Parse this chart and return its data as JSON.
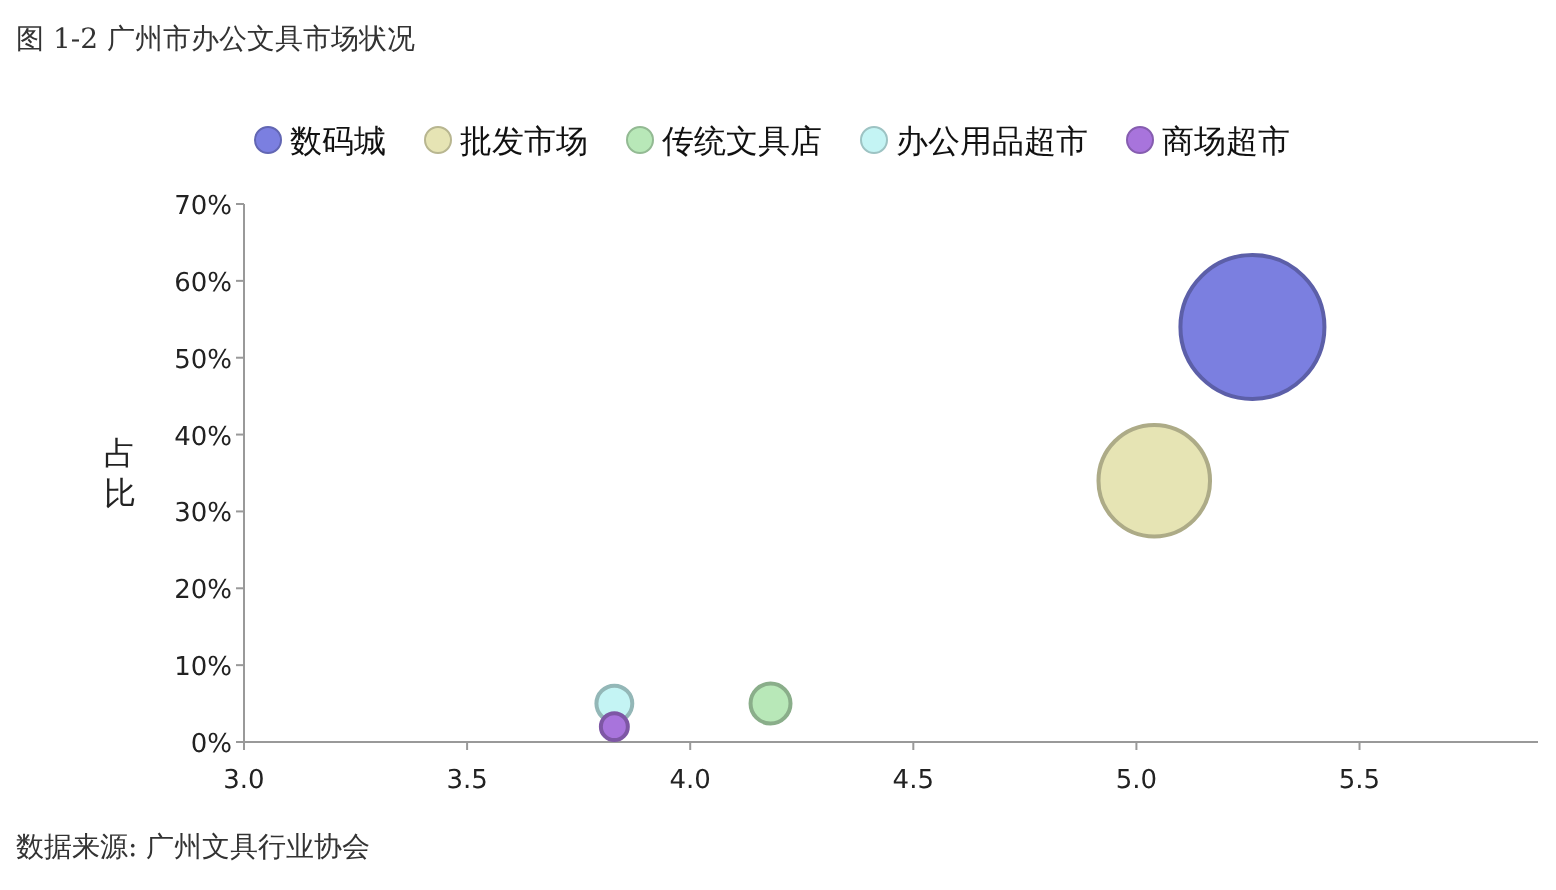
{
  "chart_data": {
    "type": "bubble",
    "title": "图 1-2 广州市办公文具市场状况",
    "ylabel": "占比",
    "annotations": [
      "数据来源: 广州文具行业协会"
    ],
    "series": [
      {
        "name": "数码城",
        "color": "#7b7fe0",
        "x": [
          5.26
        ],
        "values": [
          54
        ],
        "sizes": [
          1
        ]
      },
      {
        "name": "批发市场",
        "color": "#e6e4b4",
        "x": [
          5.04
        ],
        "values": [
          34
        ],
        "sizes": [
          0.6
        ]
      },
      {
        "name": "传统文具店",
        "color": "#b8e8b8",
        "x": [
          4.18
        ],
        "values": [
          5
        ],
        "sizes": [
          0.077
        ]
      },
      {
        "name": "办公用品超市",
        "color": "#c4f4f4",
        "x": [
          3.83
        ],
        "values": [
          5
        ],
        "sizes": [
          0.062
        ]
      },
      {
        "name": "商场超市",
        "color": "#a874dc",
        "x": [
          3.83
        ],
        "values": [
          2
        ],
        "sizes": [
          0.035
        ]
      }
    ],
    "xlim": [
      3.0,
      5.9
    ],
    "ylim": [
      0,
      70
    ],
    "xticks": [
      {
        "value": 3,
        "label": "3.0"
      },
      {
        "value": 3.5,
        "label": "3.5"
      },
      {
        "value": 4,
        "label": "4.0"
      },
      {
        "value": 4.5,
        "label": "4.5"
      },
      {
        "value": 5,
        "label": "5.0"
      },
      {
        "value": 5.5,
        "label": "5.5"
      }
    ],
    "yticks": [
      {
        "value": 0,
        "label": "0%"
      },
      {
        "value": 10,
        "label": "10%"
      },
      {
        "value": 20,
        "label": "20%"
      },
      {
        "value": 30,
        "label": "30%"
      },
      {
        "value": 40,
        "label": "40%"
      },
      {
        "value": 50,
        "label": "50%"
      },
      {
        "value": 60,
        "label": "60%"
      },
      {
        "value": 70,
        "label": "70%"
      }
    ],
    "legend": "top",
    "grid": false
  }
}
